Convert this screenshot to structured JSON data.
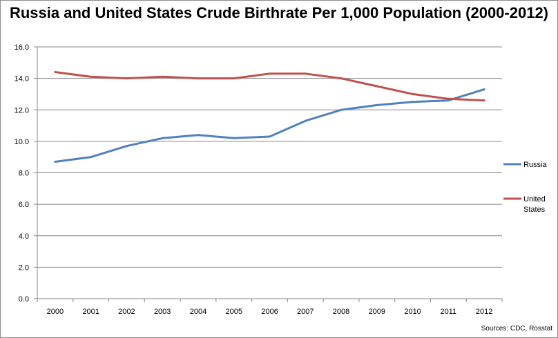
{
  "chart_data": {
    "type": "line",
    "title": "Russia and United States Crude Birthrate Per 1,000 Population (2000-2012)",
    "xlabel": "",
    "ylabel": "",
    "categories": [
      "2000",
      "2001",
      "2002",
      "2003",
      "2004",
      "2005",
      "2006",
      "2007",
      "2008",
      "2009",
      "2010",
      "2011",
      "2012"
    ],
    "ylim": [
      0,
      16
    ],
    "yticks": [
      "0.0",
      "2.0",
      "4.0",
      "6.0",
      "8.0",
      "10.0",
      "12.0",
      "14.0",
      "16.0"
    ],
    "grid": "horizontal",
    "legend_position": "right",
    "series": [
      {
        "name": "Russia",
        "color": "#4f81bd",
        "values": [
          8.7,
          9.0,
          9.7,
          10.2,
          10.4,
          10.2,
          10.3,
          11.3,
          12.0,
          12.3,
          12.5,
          12.6,
          13.3
        ]
      },
      {
        "name": "United States",
        "legend_lines": [
          "United",
          "States"
        ],
        "color": "#c0504d",
        "values": [
          14.4,
          14.1,
          14.0,
          14.1,
          14.0,
          14.0,
          14.3,
          14.3,
          14.0,
          13.5,
          13.0,
          12.7,
          12.6
        ]
      }
    ],
    "source": "Sources: CDC, Rosstat"
  }
}
